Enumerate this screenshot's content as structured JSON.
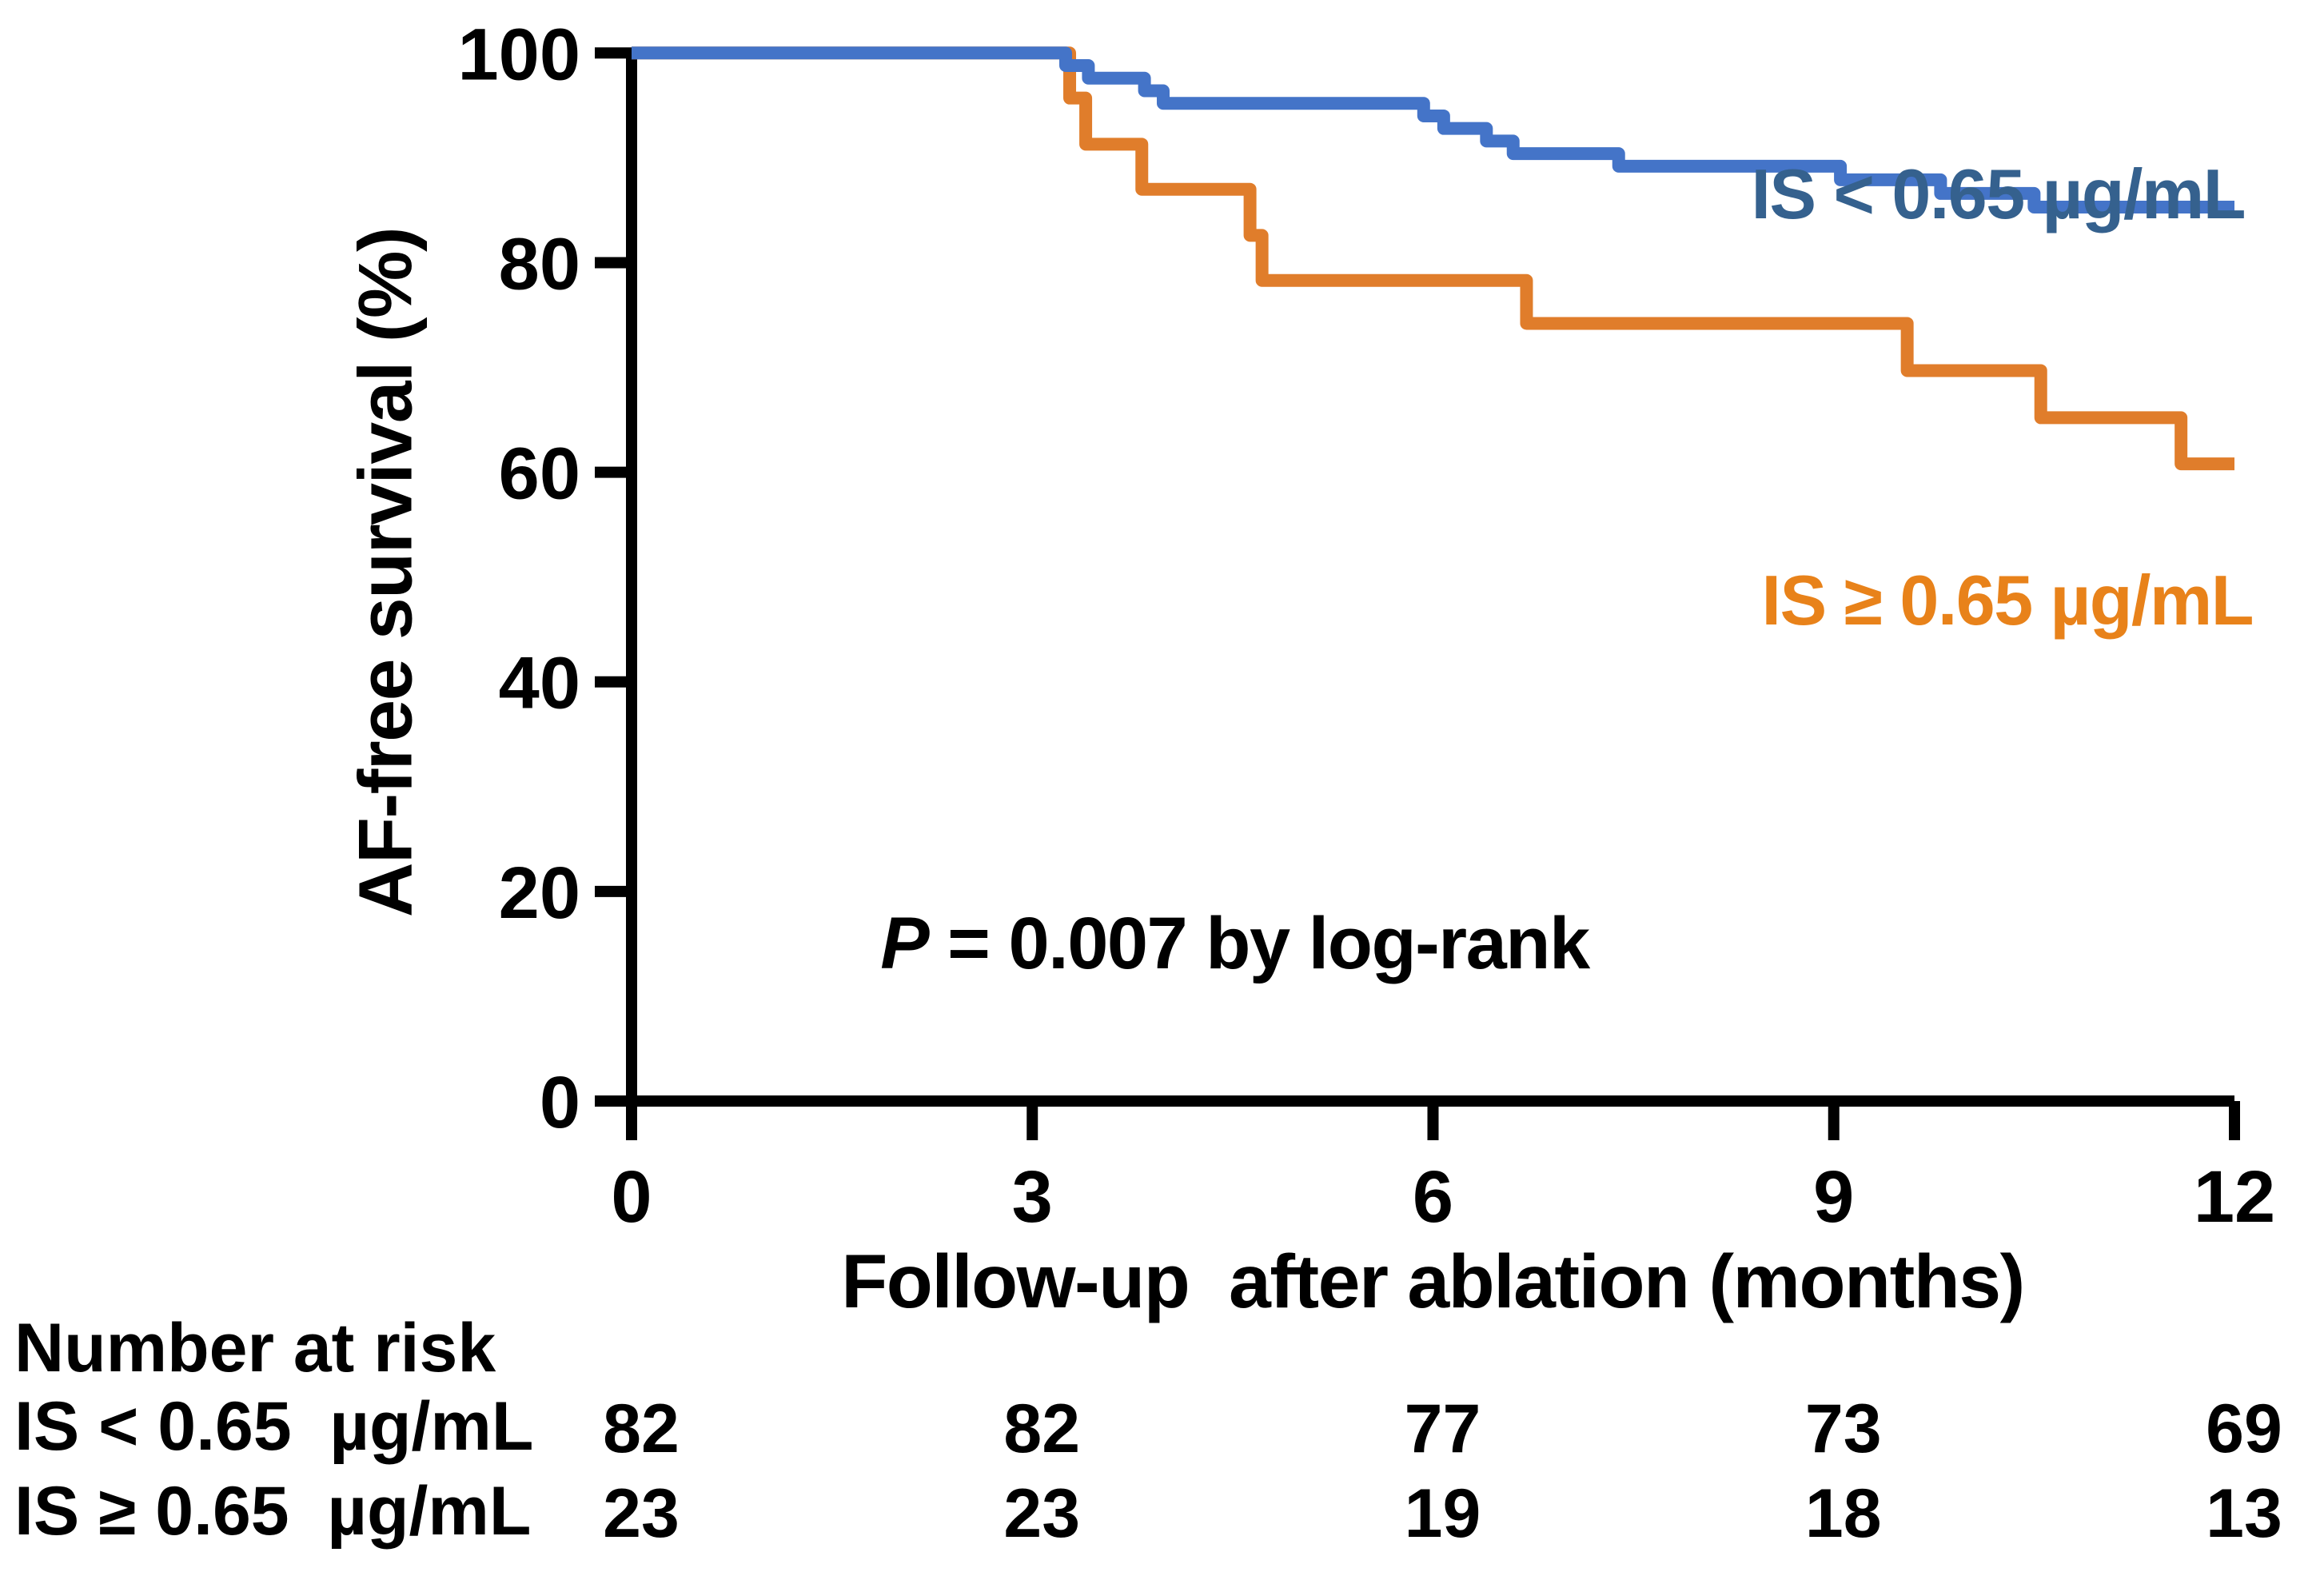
{
  "chart_data": {
    "type": "line",
    "subtype": "kaplan-meier-step",
    "title": "",
    "xlabel": "Follow-up  after ablation (months)",
    "ylabel": "AF-free survival (%)",
    "xlim": [
      0,
      12
    ],
    "ylim": [
      0,
      100
    ],
    "x_ticks": [
      0,
      3,
      6,
      9,
      12
    ],
    "y_ticks": [
      100,
      80,
      60,
      40,
      20,
      0
    ],
    "grid": "off",
    "legend_position": "right-inline",
    "annotation": {
      "p_italic": "P",
      "p_rest": " = 0.007 by log-rank"
    },
    "series": [
      {
        "name": "IS < 0.65 µg/mL",
        "color": "#4474C8",
        "label_color": "#35618E",
        "km_points": [
          [
            0,
            100
          ],
          [
            3.25,
            98.8
          ],
          [
            3.42,
            97.6
          ],
          [
            3.84,
            96.4
          ],
          [
            3.98,
            95.2
          ],
          [
            5.93,
            94.0
          ],
          [
            6.08,
            92.8
          ],
          [
            6.4,
            91.6
          ],
          [
            6.6,
            90.4
          ],
          [
            7.39,
            89.2
          ],
          [
            9.05,
            87.9
          ],
          [
            9.8,
            86.6
          ],
          [
            10.5,
            85.3
          ],
          [
            12,
            85.3
          ]
        ]
      },
      {
        "name": "IS ≥ 0.65 µg/mL",
        "color": "#E07D2B",
        "label_color": "#E8821A",
        "km_points": [
          [
            0,
            100
          ],
          [
            3.28,
            95.7
          ],
          [
            3.4,
            91.3
          ],
          [
            3.82,
            87.0
          ],
          [
            4.63,
            82.6
          ],
          [
            4.72,
            78.3
          ],
          [
            6.7,
            74.2
          ],
          [
            9.55,
            69.7
          ],
          [
            10.55,
            65.2
          ],
          [
            11.6,
            60.8
          ],
          [
            12,
            60.8
          ]
        ]
      }
    ],
    "number_at_risk": {
      "header": "Number at risk",
      "columns": [
        0,
        3,
        6,
        9,
        12
      ],
      "rows": [
        {
          "label": "IS < 0.65  µg/mL",
          "values": [
            82,
            82,
            77,
            73,
            69
          ]
        },
        {
          "label": "IS ≥ 0.65  µg/mL",
          "values": [
            23,
            23,
            19,
            18,
            13
          ]
        }
      ]
    }
  }
}
